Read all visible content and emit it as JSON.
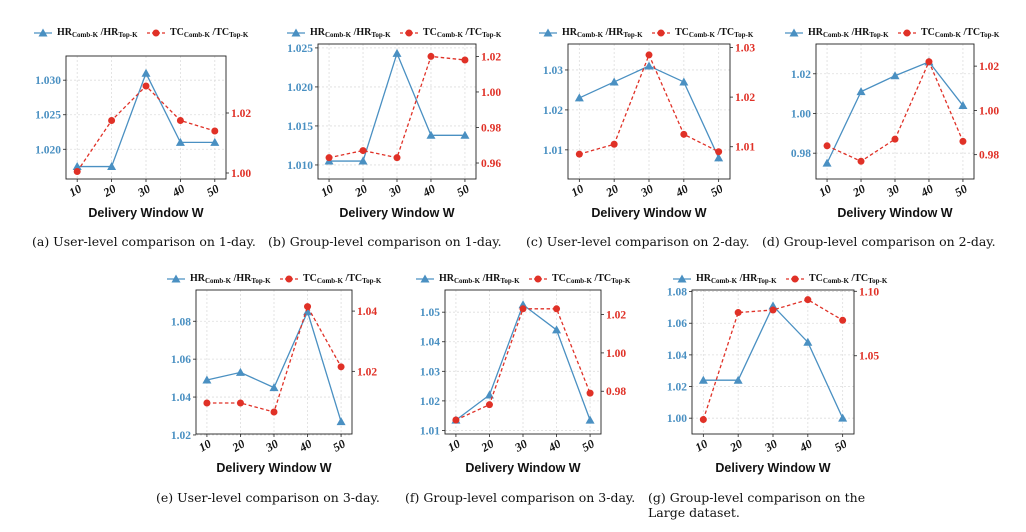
{
  "legend": {
    "hr_main": "HR",
    "hr_sub1": "Comb-K",
    "hr_mid": " /HR",
    "hr_sub2": "Top-K",
    "tc_main": "TC",
    "tc_sub1": "Comb-K",
    "tc_mid": " /TC",
    "tc_sub2": "Top-K"
  },
  "colors": {
    "left_series": "#4a90c2",
    "right_series": "#e03127",
    "grid": "#dddddd"
  },
  "chart_data": [
    {
      "id": "a",
      "type": "line",
      "caption": "(a)  User-level comparison on 1-day.",
      "xlabel": "Delivery Window W",
      "categories": [
        "10",
        "20",
        "30",
        "40",
        "50"
      ],
      "series": [
        {
          "name": "HR_Comb-K /HR_Top-K",
          "axis": "left",
          "style": "solid-triangle",
          "values": [
            1.0175,
            1.0175,
            1.031,
            1.021,
            1.021
          ]
        },
        {
          "name": "TC_Comb-K /TC_Top-K",
          "axis": "right",
          "style": "dashed-circle",
          "values": [
            1.0005,
            1.0175,
            1.029,
            1.0175,
            1.014
          ]
        }
      ],
      "left_axis": {
        "ylim": [
          1.0157,
          1.0335
        ],
        "ticks": [
          1.02,
          1.025,
          1.03
        ],
        "labels": [
          "1.020",
          "1.025",
          "1.030"
        ]
      },
      "right_axis": {
        "ylim": [
          0.998,
          1.039
        ],
        "ticks": [
          1.0,
          1.02
        ],
        "labels": [
          "1.00",
          "1.02"
        ]
      }
    },
    {
      "id": "b",
      "type": "line",
      "caption": "(b)  Group-level comparison on 1-day.",
      "xlabel": "Delivery Window W",
      "categories": [
        "10",
        "20",
        "30",
        "40",
        "50"
      ],
      "series": [
        {
          "name": "HR_Comb-K /HR_Top-K",
          "axis": "left",
          "style": "solid-triangle",
          "values": [
            1.0105,
            1.0105,
            1.0243,
            1.0138,
            1.0138
          ]
        },
        {
          "name": "TC_Comb-K /TC_Top-K",
          "axis": "right",
          "style": "dashed-circle",
          "values": [
            0.963,
            0.967,
            0.963,
            1.02,
            1.018
          ]
        }
      ],
      "left_axis": {
        "ylim": [
          1.0082,
          1.0255
        ],
        "ticks": [
          1.01,
          1.015,
          1.02,
          1.025
        ],
        "labels": [
          "1.010",
          "1.015",
          "1.020",
          "1.025"
        ]
      },
      "right_axis": {
        "ylim": [
          0.951,
          1.027
        ],
        "ticks": [
          0.96,
          0.98,
          1.0,
          1.02
        ],
        "labels": [
          "0.96",
          "0.98",
          "1.00",
          "1.02"
        ]
      }
    },
    {
      "id": "c",
      "type": "line",
      "caption": "(c)  User-level comparison on 2-day.",
      "xlabel": "Delivery Window W",
      "categories": [
        "10",
        "20",
        "30",
        "40",
        "50"
      ],
      "series": [
        {
          "name": "HR_Comb-K /HR_Top-K",
          "axis": "left",
          "style": "solid-triangle",
          "values": [
            1.023,
            1.027,
            1.031,
            1.027,
            1.008
          ]
        },
        {
          "name": "TC_Comb-K /TC_Top-K",
          "axis": "right",
          "style": "dashed-circle",
          "values": [
            1.0085,
            1.0105,
            1.0285,
            1.0125,
            1.009
          ]
        }
      ],
      "left_axis": {
        "ylim": [
          1.0027,
          1.0365
        ],
        "ticks": [
          1.01,
          1.02,
          1.03
        ],
        "labels": [
          "1.01",
          "1.02",
          "1.03"
        ]
      },
      "right_axis": {
        "ylim": [
          1.0035,
          1.0307
        ],
        "ticks": [
          1.01,
          1.02,
          1.03
        ],
        "labels": [
          "1.01",
          "1.02",
          "1.03"
        ]
      }
    },
    {
      "id": "d",
      "type": "line",
      "caption": "(d)  Group-level comparison on 2-day.",
      "xlabel": "Delivery Window W",
      "categories": [
        "10",
        "20",
        "30",
        "40",
        "50"
      ],
      "series": [
        {
          "name": "HR_Comb-K /HR_Top-K",
          "axis": "left",
          "style": "solid-triangle",
          "values": [
            0.975,
            1.011,
            1.019,
            1.026,
            1.004
          ]
        },
        {
          "name": "TC_Comb-K /TC_Top-K",
          "axis": "right",
          "style": "dashed-circle",
          "values": [
            0.984,
            0.977,
            0.987,
            1.022,
            0.986
          ]
        }
      ],
      "left_axis": {
        "ylim": [
          0.967,
          1.035
        ],
        "ticks": [
          0.98,
          1.0,
          1.02
        ],
        "labels": [
          "0.98",
          "1.00",
          "1.02"
        ]
      },
      "right_axis": {
        "ylim": [
          0.969,
          1.03
        ],
        "ticks": [
          0.98,
          1.0,
          1.02
        ],
        "labels": [
          "0.98",
          "1.00",
          "1.02"
        ]
      }
    },
    {
      "id": "e",
      "type": "line",
      "caption": "(e)  User-level comparison on 3-day.",
      "xlabel": "Delivery Window W",
      "categories": [
        "10",
        "20",
        "30",
        "40",
        "50"
      ],
      "series": [
        {
          "name": "HR_Comb-K /HR_Top-K",
          "axis": "left",
          "style": "solid-triangle",
          "values": [
            1.049,
            1.053,
            1.045,
            1.085,
            1.027
          ]
        },
        {
          "name": "TC_Comb-K /TC_Top-K",
          "axis": "right",
          "style": "dashed-circle",
          "values": [
            1.0095,
            1.0095,
            1.0065,
            1.0415,
            1.0215
          ]
        }
      ],
      "left_axis": {
        "ylim": [
          1.0205,
          1.0965
        ],
        "ticks": [
          1.02,
          1.04,
          1.06,
          1.08
        ],
        "labels": [
          "1.02",
          "1.04",
          "1.06",
          "1.08"
        ]
      },
      "right_axis": {
        "ylim": [
          0.9992,
          1.047
        ],
        "ticks": [
          1.02,
          1.04
        ],
        "labels": [
          "1.02",
          "1.04"
        ]
      }
    },
    {
      "id": "f",
      "type": "line",
      "caption": "(f)  Group-level comparison on 3-day.",
      "xlabel": "Delivery Window W",
      "categories": [
        "10",
        "20",
        "30",
        "40",
        "50"
      ],
      "series": [
        {
          "name": "HR_Comb-K /HR_Top-K",
          "axis": "left",
          "style": "solid-triangle",
          "values": [
            1.0135,
            1.022,
            1.0525,
            1.044,
            1.0135
          ]
        },
        {
          "name": "TC_Comb-K /TC_Top-K",
          "axis": "right",
          "style": "dashed-circle",
          "values": [
            0.965,
            0.973,
            1.023,
            1.023,
            0.979
          ]
        }
      ],
      "left_axis": {
        "ylim": [
          1.0088,
          1.0575
        ],
        "ticks": [
          1.01,
          1.02,
          1.03,
          1.04,
          1.05
        ],
        "labels": [
          "1.01",
          "1.02",
          "1.03",
          "1.04",
          "1.05"
        ]
      },
      "right_axis": {
        "ylim": [
          0.9577,
          1.0328
        ],
        "ticks": [
          0.98,
          1.0,
          1.02
        ],
        "labels": [
          "0.98",
          "1.00",
          "1.02"
        ]
      }
    },
    {
      "id": "g",
      "type": "line",
      "caption": "(g)  Group-level comparison on the Large dataset.",
      "xlabel": "Delivery Window W",
      "categories": [
        "10",
        "20",
        "30",
        "40",
        "50"
      ],
      "series": [
        {
          "name": "HR_Comb-K /HR_Top-K",
          "axis": "left",
          "style": "solid-triangle",
          "values": [
            1.024,
            1.024,
            1.071,
            1.048,
            1.0
          ]
        },
        {
          "name": "TC_Comb-K /TC_Top-K",
          "axis": "right",
          "style": "dashed-circle",
          "values": [
            1.0005,
            1.0835,
            1.0855,
            1.0935,
            1.0775
          ]
        }
      ],
      "left_axis": {
        "ylim": [
          0.99,
          1.081
        ],
        "ticks": [
          1.0,
          1.02,
          1.04,
          1.06,
          1.08
        ],
        "labels": [
          "1.00",
          "1.02",
          "1.04",
          "1.06",
          "1.08"
        ]
      },
      "right_axis": {
        "ylim": [
          0.9893,
          1.101
        ],
        "ticks": [
          1.05,
          1.1
        ],
        "labels": [
          "1.05",
          "1.10"
        ]
      }
    }
  ]
}
